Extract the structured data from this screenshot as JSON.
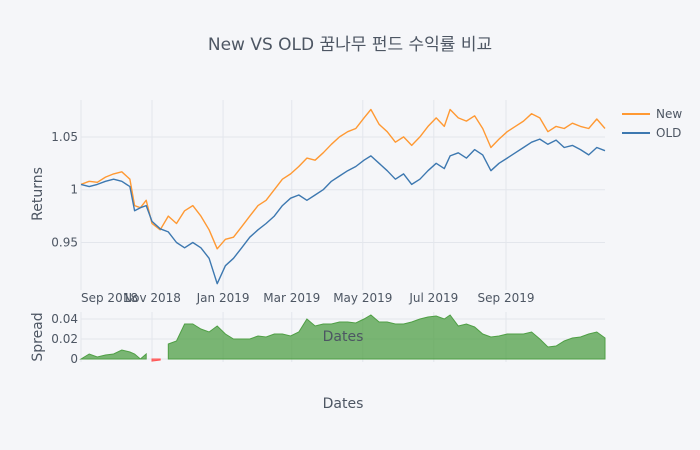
{
  "chart_data": {
    "type": "line",
    "title": "New VS OLD 꿈나무 펀드 수익률 비교",
    "colors": {
      "new": "#ff9933",
      "old": "#3d78b0",
      "spread_pos": "#4f9f45",
      "spread_neg": "#ff5555"
    },
    "returns": {
      "ylabel": "Returns",
      "ylim": [
        0.905,
        1.085
      ],
      "yticks": [
        0.95,
        1,
        1.05
      ],
      "ytick_labels": [
        "0.95",
        "1",
        "1.05"
      ]
    },
    "spread": {
      "ylabel": "Spread",
      "xlabel": "Dates",
      "ylim": [
        -0.003,
        0.047
      ],
      "yticks": [
        0,
        0.02,
        0.04
      ],
      "ytick_labels": [
        "0",
        "0.02",
        "0.04"
      ]
    },
    "xlabel": "Dates",
    "xrange": [
      "2018-09-01",
      "2019-11-25"
    ],
    "xticks": [
      "2018-09-01",
      "2018-11-01",
      "2019-01-01",
      "2019-03-01",
      "2019-05-01",
      "2019-07-01",
      "2019-09-01"
    ],
    "xtick_labels": [
      "Sep 2018",
      "Nov 2018",
      "Jan 2019",
      "Mar 2019",
      "May 2019",
      "Jul 2019",
      "Sep 2019"
    ],
    "series": [
      {
        "name": "New",
        "points": [
          [
            "2018-09-01",
            1.005
          ],
          [
            "2018-09-08",
            1.008
          ],
          [
            "2018-09-15",
            1.007
          ],
          [
            "2018-09-22",
            1.012
          ],
          [
            "2018-09-29",
            1.015
          ],
          [
            "2018-10-06",
            1.017
          ],
          [
            "2018-10-13",
            1.01
          ],
          [
            "2018-10-17",
            0.985
          ],
          [
            "2018-10-22",
            0.983
          ],
          [
            "2018-10-27",
            0.99
          ],
          [
            "2018-11-01",
            0.968
          ],
          [
            "2018-11-08",
            0.962
          ],
          [
            "2018-11-15",
            0.975
          ],
          [
            "2018-11-22",
            0.968
          ],
          [
            "2018-11-29",
            0.98
          ],
          [
            "2018-12-06",
            0.985
          ],
          [
            "2018-12-13",
            0.975
          ],
          [
            "2018-12-20",
            0.962
          ],
          [
            "2018-12-27",
            0.944
          ],
          [
            "2019-01-03",
            0.953
          ],
          [
            "2019-01-10",
            0.955
          ],
          [
            "2019-01-17",
            0.965
          ],
          [
            "2019-01-24",
            0.975
          ],
          [
            "2019-01-31",
            0.985
          ],
          [
            "2019-02-07",
            0.99
          ],
          [
            "2019-02-14",
            1.0
          ],
          [
            "2019-02-21",
            1.01
          ],
          [
            "2019-02-28",
            1.015
          ],
          [
            "2019-03-07",
            1.022
          ],
          [
            "2019-03-14",
            1.03
          ],
          [
            "2019-03-21",
            1.028
          ],
          [
            "2019-03-28",
            1.035
          ],
          [
            "2019-04-04",
            1.043
          ],
          [
            "2019-04-11",
            1.05
          ],
          [
            "2019-04-18",
            1.055
          ],
          [
            "2019-04-25",
            1.058
          ],
          [
            "2019-05-02",
            1.068
          ],
          [
            "2019-05-08",
            1.076
          ],
          [
            "2019-05-15",
            1.062
          ],
          [
            "2019-05-22",
            1.055
          ],
          [
            "2019-05-29",
            1.045
          ],
          [
            "2019-06-05",
            1.05
          ],
          [
            "2019-06-12",
            1.042
          ],
          [
            "2019-06-19",
            1.05
          ],
          [
            "2019-06-26",
            1.06
          ],
          [
            "2019-07-03",
            1.068
          ],
          [
            "2019-07-10",
            1.06
          ],
          [
            "2019-07-15",
            1.076
          ],
          [
            "2019-07-22",
            1.068
          ],
          [
            "2019-07-29",
            1.065
          ],
          [
            "2019-08-05",
            1.07
          ],
          [
            "2019-08-12",
            1.058
          ],
          [
            "2019-08-19",
            1.04
          ],
          [
            "2019-08-26",
            1.048
          ],
          [
            "2019-09-02",
            1.055
          ],
          [
            "2019-09-09",
            1.06
          ],
          [
            "2019-09-16",
            1.065
          ],
          [
            "2019-09-23",
            1.072
          ],
          [
            "2019-09-30",
            1.068
          ],
          [
            "2019-10-07",
            1.055
          ],
          [
            "2019-10-14",
            1.06
          ],
          [
            "2019-10-21",
            1.058
          ],
          [
            "2019-10-28",
            1.063
          ],
          [
            "2019-11-04",
            1.06
          ],
          [
            "2019-11-11",
            1.058
          ],
          [
            "2019-11-18",
            1.067
          ],
          [
            "2019-11-25",
            1.058
          ]
        ]
      },
      {
        "name": "OLD",
        "points": [
          [
            "2018-09-01",
            1.005
          ],
          [
            "2018-09-08",
            1.003
          ],
          [
            "2018-09-15",
            1.005
          ],
          [
            "2018-09-22",
            1.008
          ],
          [
            "2018-09-29",
            1.01
          ],
          [
            "2018-10-06",
            1.008
          ],
          [
            "2018-10-13",
            1.003
          ],
          [
            "2018-10-17",
            0.98
          ],
          [
            "2018-10-22",
            0.983
          ],
          [
            "2018-10-27",
            0.985
          ],
          [
            "2018-11-01",
            0.97
          ],
          [
            "2018-11-08",
            0.963
          ],
          [
            "2018-11-15",
            0.96
          ],
          [
            "2018-11-22",
            0.95
          ],
          [
            "2018-11-29",
            0.945
          ],
          [
            "2018-12-06",
            0.95
          ],
          [
            "2018-12-13",
            0.945
          ],
          [
            "2018-12-20",
            0.935
          ],
          [
            "2018-12-27",
            0.911
          ],
          [
            "2019-01-03",
            0.928
          ],
          [
            "2019-01-10",
            0.935
          ],
          [
            "2019-01-17",
            0.945
          ],
          [
            "2019-01-24",
            0.955
          ],
          [
            "2019-01-31",
            0.962
          ],
          [
            "2019-02-07",
            0.968
          ],
          [
            "2019-02-14",
            0.975
          ],
          [
            "2019-02-21",
            0.985
          ],
          [
            "2019-02-28",
            0.992
          ],
          [
            "2019-03-07",
            0.995
          ],
          [
            "2019-03-14",
            0.99
          ],
          [
            "2019-03-21",
            0.995
          ],
          [
            "2019-03-28",
            1.0
          ],
          [
            "2019-04-04",
            1.008
          ],
          [
            "2019-04-11",
            1.013
          ],
          [
            "2019-04-18",
            1.018
          ],
          [
            "2019-04-25",
            1.022
          ],
          [
            "2019-05-02",
            1.028
          ],
          [
            "2019-05-08",
            1.032
          ],
          [
            "2019-05-15",
            1.025
          ],
          [
            "2019-05-22",
            1.018
          ],
          [
            "2019-05-29",
            1.01
          ],
          [
            "2019-06-05",
            1.015
          ],
          [
            "2019-06-12",
            1.005
          ],
          [
            "2019-06-19",
            1.01
          ],
          [
            "2019-06-26",
            1.018
          ],
          [
            "2019-07-03",
            1.025
          ],
          [
            "2019-07-10",
            1.02
          ],
          [
            "2019-07-15",
            1.032
          ],
          [
            "2019-07-22",
            1.035
          ],
          [
            "2019-07-29",
            1.03
          ],
          [
            "2019-08-05",
            1.038
          ],
          [
            "2019-08-12",
            1.033
          ],
          [
            "2019-08-19",
            1.018
          ],
          [
            "2019-08-26",
            1.025
          ],
          [
            "2019-09-02",
            1.03
          ],
          [
            "2019-09-09",
            1.035
          ],
          [
            "2019-09-16",
            1.04
          ],
          [
            "2019-09-23",
            1.045
          ],
          [
            "2019-09-30",
            1.048
          ],
          [
            "2019-10-07",
            1.043
          ],
          [
            "2019-10-14",
            1.047
          ],
          [
            "2019-10-21",
            1.04
          ],
          [
            "2019-10-28",
            1.042
          ],
          [
            "2019-11-04",
            1.038
          ],
          [
            "2019-11-11",
            1.033
          ],
          [
            "2019-11-18",
            1.04
          ],
          [
            "2019-11-25",
            1.037
          ]
        ]
      }
    ],
    "legend_position": "top-right",
    "grid": true
  }
}
